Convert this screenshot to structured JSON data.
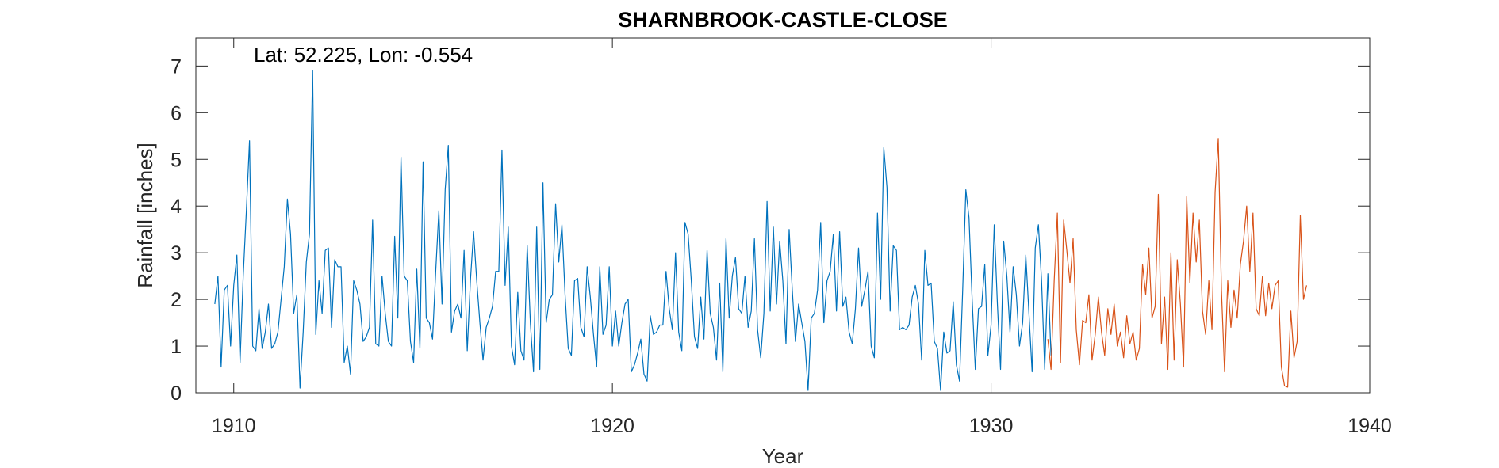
{
  "chart_data": {
    "type": "line",
    "title": "SHARNBROOK-CASTLE-CLOSE",
    "xlabel": "Year",
    "ylabel": "Rainfall [inches]",
    "annotation": "Lat: 52.225, Lon: -0.554",
    "xlim": [
      1909,
      1940
    ],
    "ylim": [
      0,
      7.6
    ],
    "xticks": [
      1910,
      1920,
      1930,
      1940
    ],
    "yticks": [
      0,
      1,
      2,
      3,
      4,
      5,
      6,
      7
    ],
    "grid": false,
    "series": [
      {
        "color": "#0072BD",
        "x_start": 1909.5,
        "x_step": 0.0833333,
        "values": [
          1.9,
          2.5,
          0.55,
          2.2,
          2.3,
          1.0,
          2.3,
          2.95,
          0.65,
          2.5,
          3.9,
          5.4,
          1.0,
          0.9,
          1.8,
          0.95,
          1.3,
          1.9,
          0.95,
          1.05,
          1.3,
          2.0,
          2.7,
          4.15,
          3.4,
          1.7,
          2.1,
          0.1,
          1.3,
          2.8,
          3.4,
          6.9,
          1.25,
          2.4,
          1.7,
          3.05,
          3.1,
          1.4,
          2.85,
          2.7,
          2.7,
          0.65,
          1.0,
          0.4,
          2.4,
          2.2,
          1.9,
          1.1,
          1.2,
          1.4,
          3.7,
          1.05,
          1.0,
          2.5,
          1.7,
          1.1,
          1.0,
          3.35,
          1.6,
          5.05,
          2.5,
          2.4,
          1.1,
          0.65,
          2.65,
          0.95,
          4.95,
          1.6,
          1.5,
          1.15,
          2.6,
          3.9,
          1.9,
          4.35,
          5.3,
          1.3,
          1.75,
          1.9,
          1.6,
          3.05,
          0.9,
          2.4,
          3.45,
          2.4,
          1.5,
          0.7,
          1.4,
          1.6,
          1.85,
          2.6,
          2.6,
          5.2,
          2.3,
          3.55,
          1.0,
          0.6,
          2.15,
          0.9,
          0.7,
          3.15,
          1.5,
          0.45,
          3.55,
          0.5,
          4.5,
          1.5,
          2.0,
          2.1,
          4.05,
          2.8,
          3.6,
          2.1,
          0.95,
          0.8,
          2.4,
          2.45,
          1.4,
          1.2,
          2.7,
          2.05,
          1.25,
          0.55,
          2.7,
          1.25,
          1.45,
          2.7,
          1.0,
          1.75,
          1.0,
          1.5,
          1.9,
          2.0,
          0.45,
          0.6,
          0.85,
          1.15,
          0.4,
          0.25,
          1.65,
          1.25,
          1.3,
          1.45,
          1.45,
          2.6,
          1.8,
          1.35,
          3.0,
          1.3,
          0.9,
          3.65,
          3.4,
          2.4,
          1.2,
          0.95,
          2.05,
          1.15,
          3.05,
          1.7,
          1.4,
          0.7,
          2.35,
          0.45,
          3.3,
          1.6,
          2.5,
          2.9,
          1.8,
          1.7,
          2.5,
          1.4,
          1.75,
          3.3,
          1.35,
          0.75,
          1.7,
          4.1,
          1.75,
          3.55,
          1.9,
          3.25,
          2.4,
          1.05,
          3.5,
          2.2,
          1.1,
          1.9,
          1.5,
          1.1,
          0.05,
          1.6,
          1.7,
          2.2,
          3.65,
          1.5,
          2.4,
          2.6,
          3.4,
          1.75,
          3.45,
          1.85,
          2.05,
          1.3,
          1.05,
          1.8,
          3.1,
          1.85,
          2.2,
          2.6,
          1.0,
          0.75,
          3.85,
          2.0,
          5.25,
          4.4,
          1.75,
          3.15,
          3.05,
          1.35,
          1.4,
          1.35,
          1.45,
          2.05,
          2.3,
          1.9,
          0.7,
          3.05,
          2.3,
          2.35,
          1.1,
          0.95,
          0.05,
          1.3,
          0.85,
          0.9,
          1.95,
          0.6,
          0.25,
          2.2,
          4.35,
          3.75,
          2.0,
          0.5,
          1.8,
          1.85,
          2.75,
          0.8,
          1.45,
          3.6,
          1.9,
          0.5,
          3.25,
          2.5,
          1.3,
          2.7,
          2.1,
          1.0,
          1.5,
          2.95,
          1.7,
          0.45,
          3.1,
          3.6,
          2.4,
          0.5,
          2.55,
          0.8
        ]
      },
      {
        "color": "#D95319",
        "x_start": 1931.5,
        "x_step": 0.0833333,
        "values": [
          1.15,
          0.5,
          2.4,
          3.85,
          0.65,
          3.7,
          3.05,
          2.35,
          3.3,
          1.35,
          0.6,
          1.55,
          1.5,
          2.1,
          0.7,
          1.25,
          2.05,
          1.3,
          0.8,
          1.8,
          1.25,
          1.9,
          1.0,
          1.3,
          0.75,
          1.65,
          1.05,
          1.3,
          0.7,
          0.95,
          2.75,
          2.1,
          3.1,
          1.6,
          1.85,
          4.25,
          1.05,
          2.05,
          0.5,
          3.0,
          0.7,
          2.85,
          1.9,
          0.55,
          4.2,
          2.35,
          3.85,
          2.8,
          3.7,
          1.75,
          1.25,
          2.4,
          1.35,
          4.3,
          5.45,
          2.2,
          0.45,
          2.4,
          1.4,
          2.2,
          1.6,
          2.75,
          3.25,
          4.0,
          2.6,
          3.85,
          1.8,
          1.65,
          2.5,
          1.65,
          2.35,
          1.8,
          2.3,
          2.4,
          0.55,
          0.15,
          0.12,
          1.75,
          0.75,
          1.1,
          3.8,
          2.0,
          2.3
        ]
      }
    ]
  }
}
